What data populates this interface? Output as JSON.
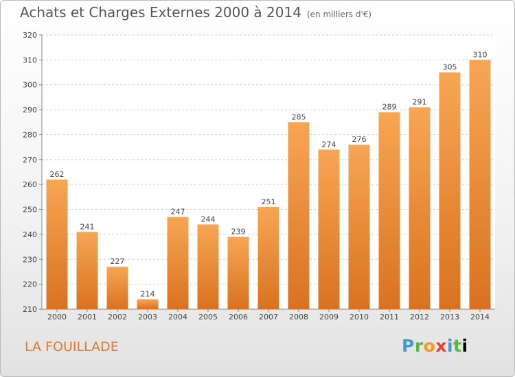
{
  "header": {
    "title": "Achats et Charges Externes 2000 à 2014",
    "unit": "(en milliers d'€)"
  },
  "footer": {
    "commune": "LA FOUILLADE",
    "logo_text": "Proxiti"
  },
  "colors": {
    "bar_top": "#f7a654",
    "bar_bottom": "#d97220",
    "commune_text": "#e07a2c"
  },
  "chart_data": {
    "type": "bar",
    "title": "Achats et Charges Externes 2000 à 2014",
    "subtitle": "(en milliers d'€)",
    "categories": [
      "2000",
      "2001",
      "2002",
      "2003",
      "2004",
      "2005",
      "2006",
      "2007",
      "2008",
      "2009",
      "2010",
      "2011",
      "2012",
      "2013",
      "2014"
    ],
    "values": [
      262,
      241,
      227,
      214,
      247,
      244,
      239,
      251,
      285,
      274,
      276,
      289,
      291,
      305,
      310
    ],
    "ylim": [
      210,
      320
    ],
    "yticks": [
      210,
      220,
      230,
      240,
      250,
      260,
      270,
      280,
      290,
      300,
      310,
      320
    ],
    "grid": true,
    "legend": "none"
  }
}
